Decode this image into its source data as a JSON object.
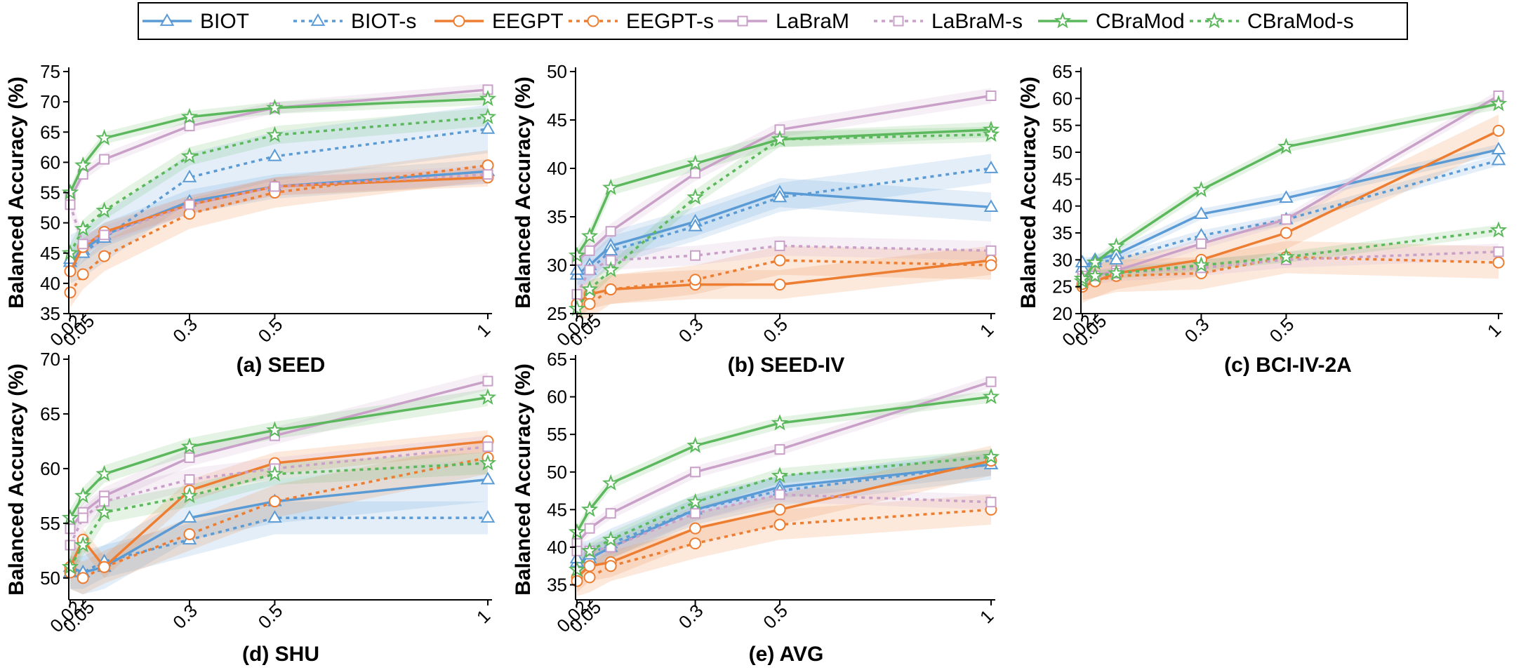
{
  "legend": [
    {
      "name": "BIOT",
      "color": "#5b9bd5",
      "dash": false,
      "marker": "triangle"
    },
    {
      "name": "BIOT-s",
      "color": "#5b9bd5",
      "dash": true,
      "marker": "triangle"
    },
    {
      "name": "EEGPT",
      "color": "#ed7d31",
      "dash": false,
      "marker": "circle"
    },
    {
      "name": "EEGPT-s",
      "color": "#ed7d31",
      "dash": true,
      "marker": "circle"
    },
    {
      "name": "LaBraM",
      "color": "#c9a0c8",
      "dash": false,
      "marker": "square"
    },
    {
      "name": "LaBraM-s",
      "color": "#c9a0c8",
      "dash": true,
      "marker": "square"
    },
    {
      "name": "CBraMod",
      "color": "#5cb85c",
      "dash": false,
      "marker": "star"
    },
    {
      "name": "CBraMod-s",
      "color": "#5cb85c",
      "dash": true,
      "marker": "star"
    }
  ],
  "chart_data": [
    {
      "type": "line",
      "title": "(a) SEED",
      "ylabel": "Balanced Accuracy (%)",
      "xlabel": "",
      "x": [
        0.02,
        0.05,
        0.1,
        0.3,
        0.5,
        1
      ],
      "xticks": [
        "0.02",
        "0.05",
        "0.3",
        "0.5",
        "1"
      ],
      "ylim": [
        35,
        75
      ],
      "yticks": [
        35,
        40,
        45,
        50,
        55,
        60,
        65,
        70,
        75
      ],
      "grid": false,
      "series": [
        {
          "name": "BIOT",
          "values": [
            43.5,
            45.5,
            48.0,
            53.5,
            56.0,
            58.5
          ],
          "band": 2.0
        },
        {
          "name": "BIOT-s",
          "values": [
            44.0,
            45.0,
            47.5,
            57.5,
            61.0,
            65.5
          ],
          "band": 4.0
        },
        {
          "name": "EEGPT",
          "values": [
            42.0,
            46.0,
            48.5,
            53.0,
            56.0,
            57.5
          ],
          "band": 1.5
        },
        {
          "name": "EEGPT-s",
          "values": [
            38.5,
            41.5,
            44.5,
            51.5,
            55.0,
            59.5
          ],
          "band": 2.5
        },
        {
          "name": "LaBraM",
          "values": [
            54.0,
            58.0,
            60.5,
            66.0,
            69.0,
            72.0
          ],
          "band": 1.0
        },
        {
          "name": "LaBraM-s",
          "values": [
            53.0,
            46.5,
            48.0,
            53.0,
            56.0,
            58.0
          ],
          "band": 1.5
        },
        {
          "name": "CBraMod",
          "values": [
            55.0,
            59.5,
            64.0,
            67.5,
            69.0,
            70.5
          ],
          "band": 1.0
        },
        {
          "name": "CBraMod-s",
          "values": [
            45.0,
            49.0,
            52.0,
            61.0,
            64.5,
            67.5
          ],
          "band": 1.5
        }
      ]
    },
    {
      "type": "line",
      "title": "(b) SEED-IV",
      "ylabel": "Balanced Accuracy (%)",
      "xlabel": "",
      "x": [
        0.02,
        0.05,
        0.1,
        0.3,
        0.5,
        1
      ],
      "xticks": [
        "0.02",
        "0.05",
        "0.3",
        "0.5",
        "1"
      ],
      "ylim": [
        25,
        50
      ],
      "yticks": [
        25,
        30,
        35,
        40,
        45,
        50
      ],
      "grid": false,
      "series": [
        {
          "name": "BIOT",
          "values": [
            29.0,
            30.0,
            32.0,
            34.5,
            37.5,
            36.0
          ],
          "band": 1.5
        },
        {
          "name": "BIOT-s",
          "values": [
            29.5,
            29.5,
            31.5,
            34.0,
            37.0,
            40.0
          ],
          "band": 1.5
        },
        {
          "name": "EEGPT",
          "values": [
            26.0,
            27.0,
            27.5,
            28.0,
            28.0,
            30.5
          ],
          "band": 1.5
        },
        {
          "name": "EEGPT-s",
          "values": [
            26.0,
            26.0,
            27.5,
            28.5,
            30.5,
            30.0
          ],
          "band": 1.5
        },
        {
          "name": "LaBraM",
          "values": [
            30.5,
            31.5,
            33.5,
            39.5,
            44.0,
            47.5
          ],
          "band": 0.8
        },
        {
          "name": "LaBraM-s",
          "values": [
            27.0,
            29.5,
            30.5,
            31.0,
            32.0,
            31.5
          ],
          "band": 1.0
        },
        {
          "name": "CBraMod",
          "values": [
            31.0,
            33.0,
            38.0,
            40.5,
            43.0,
            44.0
          ],
          "band": 0.8
        },
        {
          "name": "CBraMod-s",
          "values": [
            25.5,
            27.5,
            29.5,
            37.0,
            43.0,
            43.5
          ],
          "band": 0.8
        }
      ]
    },
    {
      "type": "line",
      "title": "(c) BCI-IV-2A",
      "ylabel": "Balanced Accuracy (%)",
      "xlabel": "",
      "x": [
        0.02,
        0.05,
        0.1,
        0.3,
        0.5,
        1
      ],
      "xticks": [
        "0.02",
        "0.05",
        "0.3",
        "0.5",
        "1"
      ],
      "ylim": [
        20,
        65
      ],
      "yticks": [
        20,
        25,
        30,
        35,
        40,
        45,
        50,
        55,
        60,
        65
      ],
      "grid": false,
      "series": [
        {
          "name": "BIOT",
          "values": [
            28.5,
            30.0,
            31.0,
            38.5,
            41.5,
            50.5
          ],
          "band": 1.0
        },
        {
          "name": "BIOT-s",
          "values": [
            29.5,
            29.5,
            30.0,
            34.5,
            37.5,
            48.5
          ],
          "band": 1.0
        },
        {
          "name": "EEGPT",
          "values": [
            25.0,
            26.0,
            27.5,
            30.0,
            35.0,
            54.0
          ],
          "band": 3.0
        },
        {
          "name": "EEGPT-s",
          "values": [
            25.5,
            26.0,
            27.0,
            27.5,
            30.5,
            29.5
          ],
          "band": 3.0
        },
        {
          "name": "LaBraM",
          "values": [
            27.0,
            27.0,
            28.0,
            33.0,
            37.5,
            60.5
          ],
          "band": 1.0
        },
        {
          "name": "LaBraM-s",
          "values": [
            26.5,
            27.0,
            27.5,
            28.5,
            30.0,
            31.5
          ],
          "band": 1.5
        },
        {
          "name": "CBraMod",
          "values": [
            26.0,
            29.5,
            32.5,
            43.0,
            51.0,
            59.0
          ],
          "band": 1.0
        },
        {
          "name": "CBraMod-s",
          "values": [
            26.5,
            27.0,
            27.5,
            29.0,
            30.5,
            35.5
          ],
          "band": 1.0
        }
      ]
    },
    {
      "type": "line",
      "title": "(d) SHU",
      "ylabel": "Balanced Accuracy (%)",
      "xlabel": "",
      "x": [
        0.02,
        0.05,
        0.1,
        0.3,
        0.5,
        1
      ],
      "xticks": [
        "0.02",
        "0.05",
        "0.3",
        "0.5",
        "1"
      ],
      "ylim": [
        48,
        70
      ],
      "yticks": [
        50,
        55,
        60,
        65,
        70
      ],
      "grid": false,
      "series": [
        {
          "name": "BIOT",
          "values": [
            51.0,
            50.5,
            51.0,
            55.5,
            57.0,
            59.0
          ],
          "band": 2.0
        },
        {
          "name": "BIOT-s",
          "values": [
            50.5,
            50.5,
            51.5,
            53.5,
            55.5,
            55.5
          ],
          "band": 1.5
        },
        {
          "name": "EEGPT",
          "values": [
            51.0,
            53.5,
            51.0,
            58.0,
            60.5,
            62.5
          ],
          "band": 1.0
        },
        {
          "name": "EEGPT-s",
          "values": [
            50.5,
            50.0,
            51.0,
            54.0,
            57.0,
            61.0
          ],
          "band": 1.5
        },
        {
          "name": "LaBraM",
          "values": [
            54.5,
            56.0,
            57.5,
            61.0,
            63.0,
            68.0
          ],
          "band": 0.8
        },
        {
          "name": "LaBraM-s",
          "values": [
            53.0,
            55.5,
            57.0,
            59.0,
            60.0,
            62.0
          ],
          "band": 1.0
        },
        {
          "name": "CBraMod",
          "values": [
            55.5,
            57.5,
            59.5,
            62.0,
            63.5,
            66.5
          ],
          "band": 0.8
        },
        {
          "name": "CBraMod-s",
          "values": [
            51.0,
            53.0,
            56.0,
            57.5,
            59.5,
            60.5
          ],
          "band": 1.0
        }
      ]
    },
    {
      "type": "line",
      "title": "(e) AVG",
      "ylabel": "Balanced Accuracy (%)",
      "xlabel": "",
      "x": [
        0.02,
        0.05,
        0.1,
        0.3,
        0.5,
        1
      ],
      "xticks": [
        "0.02",
        "0.05",
        "0.3",
        "0.5",
        "1"
      ],
      "ylim": [
        33,
        65
      ],
      "yticks": [
        35,
        40,
        45,
        50,
        55,
        60,
        65
      ],
      "grid": false,
      "series": [
        {
          "name": "BIOT",
          "values": [
            38.0,
            38.5,
            40.0,
            45.0,
            48.0,
            51.0
          ],
          "band": 1.5
        },
        {
          "name": "BIOT-s",
          "values": [
            38.5,
            39.0,
            40.5,
            45.0,
            47.5,
            51.0
          ],
          "band": 2.0
        },
        {
          "name": "EEGPT",
          "values": [
            36.0,
            37.5,
            38.0,
            42.5,
            45.0,
            51.5
          ],
          "band": 2.0
        },
        {
          "name": "EEGPT-s",
          "values": [
            35.5,
            36.0,
            37.5,
            40.5,
            43.0,
            45.0
          ],
          "band": 2.0
        },
        {
          "name": "LaBraM",
          "values": [
            40.5,
            42.5,
            44.5,
            50.0,
            53.0,
            62.0
          ],
          "band": 0.8
        },
        {
          "name": "LaBraM-s",
          "values": [
            39.5,
            39.5,
            40.0,
            44.5,
            47.0,
            46.0
          ],
          "band": 1.0
        },
        {
          "name": "CBraMod",
          "values": [
            42.0,
            45.0,
            48.5,
            53.5,
            56.5,
            60.0
          ],
          "band": 0.8
        },
        {
          "name": "CBraMod-s",
          "values": [
            37.0,
            39.5,
            41.0,
            46.0,
            49.5,
            52.0
          ],
          "band": 1.0
        }
      ]
    }
  ]
}
